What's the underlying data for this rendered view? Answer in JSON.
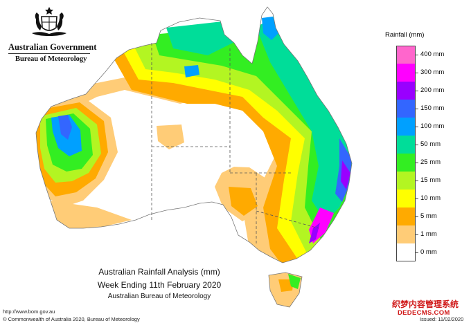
{
  "header": {
    "government": "Australian Government",
    "agency": "Bureau of Meteorology"
  },
  "legend": {
    "title": "Rainfall (mm)",
    "classes": [
      {
        "label": "400 mm",
        "color": "#ff66cc"
      },
      {
        "label": "300 mm",
        "color": "#ff00ff"
      },
      {
        "label": "200 mm",
        "color": "#9900ff"
      },
      {
        "label": "150 mm",
        "color": "#3366ff"
      },
      {
        "label": "100 mm",
        "color": "#00a0ff"
      },
      {
        "label": "50 mm",
        "color": "#00dd99"
      },
      {
        "label": "25 mm",
        "color": "#33ee22"
      },
      {
        "label": "15 mm",
        "color": "#b3f522"
      },
      {
        "label": "10 mm",
        "color": "#ffff00"
      },
      {
        "label": "5 mm",
        "color": "#ffaa00"
      },
      {
        "label": "1 mm",
        "color": "#ffcc77"
      },
      {
        "label": "0 mm",
        "color": "#ffffff"
      }
    ]
  },
  "map_title": {
    "line1": "Australian Rainfall Analysis (mm)",
    "line2": "Week Ending 11th February 2020",
    "line3": "Australian Bureau of Meteorology"
  },
  "footer": {
    "url": "http://www.bom.gov.au",
    "copyright": "© Commonwealth of Australia 2020, Bureau of Meteorology",
    "issued": "Issued: 11/02/2020"
  },
  "watermark": {
    "line1": "织梦内容管理系统",
    "line2": "DEDECMS.COM"
  }
}
